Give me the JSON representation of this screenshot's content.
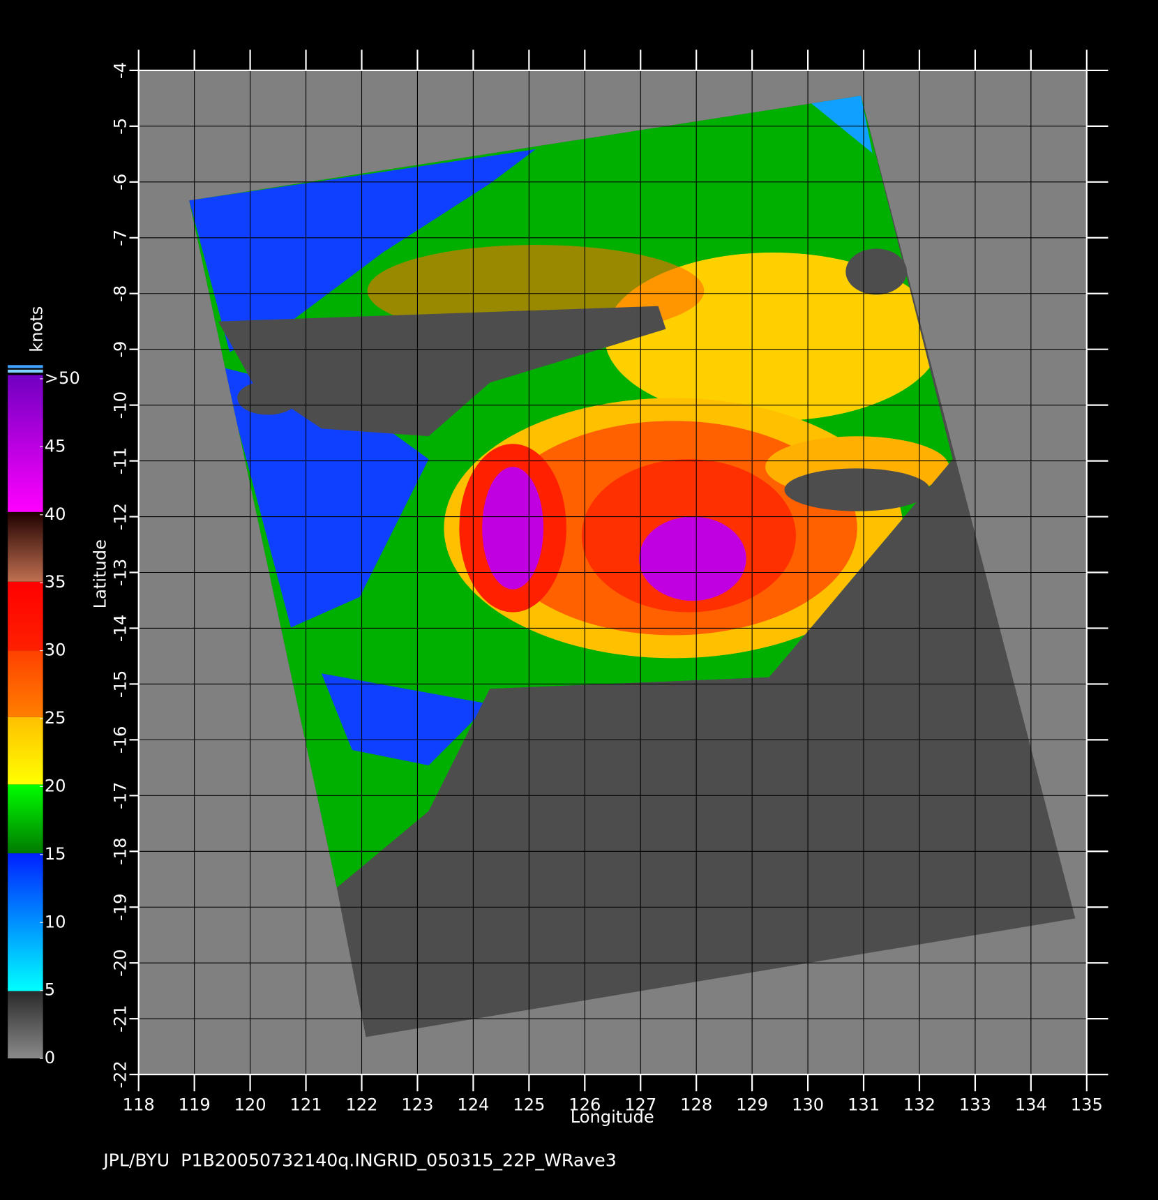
{
  "map": {
    "xlabel": "Longitude",
    "ylabel": "Latitude",
    "xlim": [
      118,
      135
    ],
    "ylim": [
      -22,
      -4
    ],
    "xticks": [
      118,
      119,
      120,
      121,
      122,
      123,
      124,
      125,
      126,
      127,
      128,
      129,
      130,
      131,
      132,
      133,
      134,
      135
    ],
    "yticks": [
      -4,
      -5,
      -6,
      -7,
      -8,
      -9,
      -10,
      -11,
      -12,
      -13,
      -14,
      -15,
      -16,
      -17,
      -18,
      -19,
      -20,
      -21,
      -22
    ]
  },
  "colorbar": {
    "label": "knots",
    "ticks": [
      0,
      5,
      10,
      15,
      20,
      25,
      30,
      35,
      40,
      45,
      {
        "value": 50,
        "label": ">50"
      }
    ]
  },
  "footer": "JPL/BYU  P1B20050732140q.INGRID_050315_22P_WRave3"
}
